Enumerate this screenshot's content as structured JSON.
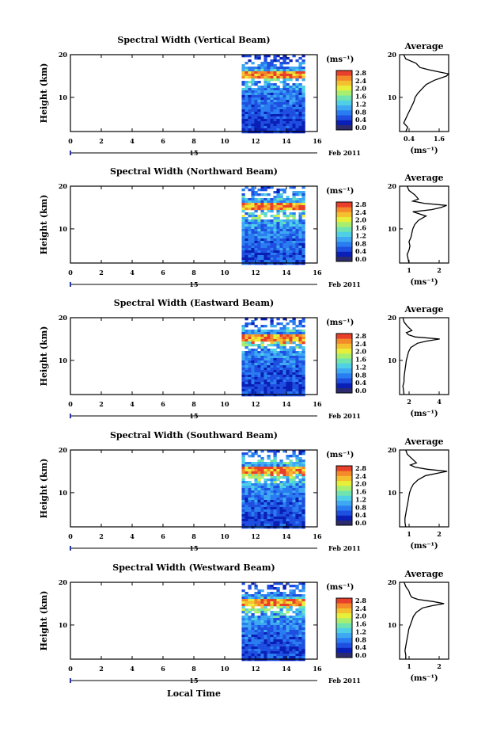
{
  "figure": {
    "xlabel": "Local Time",
    "date_label": "Feb 2011",
    "date_tick": "15",
    "ylabel": "Height (km)",
    "avg_title": "Average",
    "unit": "(ms⁻¹)"
  },
  "colorbar": {
    "ticks": [
      "0.0",
      "0.4",
      "0.8",
      "1.2",
      "1.6",
      "2.0",
      "2.4",
      "2.8"
    ],
    "colors": [
      "#2b2b6e",
      "#0a1fb5",
      "#1f4fe0",
      "#2a7df0",
      "#3fa8f2",
      "#4fd0e6",
      "#6fe3b0",
      "#a8ef70",
      "#e8ef3a",
      "#f5c030",
      "#f58a2a",
      "#e8402a"
    ]
  },
  "chart_data": [
    {
      "type": "heatmap",
      "title": "Spectral Width (Vertical Beam)",
      "xlabel": "Local Time",
      "ylabel": "Height (km)",
      "xlim": [
        0,
        16
      ],
      "ylim": [
        2,
        20
      ],
      "x_ticks": [
        0,
        2,
        4,
        6,
        8,
        10,
        12,
        14,
        16
      ],
      "y_ticks": [
        10,
        20
      ],
      "data_extent_x": [
        11.1,
        15.0
      ],
      "colorbar_range": [
        0.0,
        2.8
      ],
      "average": {
        "xlim": [
          0.4,
          1.6
        ],
        "x_ticks": [
          "0.4",
          "1.6"
        ],
        "height": [
          2,
          3,
          4,
          5,
          6,
          7,
          8,
          9,
          10,
          11,
          12,
          13,
          14,
          14.5,
          15,
          15.5,
          16,
          16.5,
          17,
          18,
          19,
          20
        ],
        "value": [
          0.55,
          0.6,
          0.5,
          0.55,
          0.6,
          0.65,
          0.7,
          0.75,
          0.78,
          0.85,
          0.95,
          1.05,
          1.25,
          1.4,
          1.55,
          1.6,
          1.35,
          1.1,
          0.9,
          0.8,
          0.55,
          0.5
        ]
      }
    },
    {
      "type": "heatmap",
      "title": "Spectral Width (Northward Beam)",
      "xlabel": "Local Time",
      "ylabel": "Height (km)",
      "xlim": [
        0,
        16
      ],
      "ylim": [
        2,
        20
      ],
      "x_ticks": [
        0,
        2,
        4,
        6,
        8,
        10,
        12,
        14,
        16
      ],
      "y_ticks": [
        10,
        20
      ],
      "data_extent_x": [
        11.1,
        15.0
      ],
      "colorbar_range": [
        0.0,
        2.8
      ],
      "average": {
        "xlim": [
          0.2,
          2.8
        ],
        "x_ticks": [
          "1",
          "2"
        ],
        "height": [
          2,
          3,
          4,
          5,
          6,
          7,
          8,
          9,
          10,
          11,
          12,
          13,
          14,
          14.5,
          15,
          15.5,
          16,
          16.5,
          17,
          18,
          19,
          20
        ],
        "value": [
          0.7,
          0.65,
          0.6,
          0.7,
          0.75,
          0.7,
          0.8,
          0.85,
          0.9,
          1.0,
          1.2,
          1.6,
          0.9,
          1.9,
          2.4,
          2.7,
          1.5,
          0.9,
          1.2,
          1.0,
          0.7,
          0.6
        ]
      }
    },
    {
      "type": "heatmap",
      "title": "Spectral Width (Eastward Beam)",
      "xlabel": "Local Time",
      "ylabel": "Height (km)",
      "xlim": [
        0,
        16
      ],
      "ylim": [
        2,
        20
      ],
      "x_ticks": [
        0,
        2,
        4,
        6,
        8,
        10,
        12,
        14,
        16
      ],
      "y_ticks": [
        10,
        20
      ],
      "data_extent_x": [
        11.1,
        15.0
      ],
      "colorbar_range": [
        0.0,
        2.8
      ],
      "average": {
        "xlim": [
          0.2,
          4.6
        ],
        "x_ticks": [
          "2",
          "4"
        ],
        "height": [
          2,
          3,
          4,
          5,
          6,
          7,
          8,
          9,
          10,
          11,
          12,
          13,
          14,
          14.5,
          15,
          15.5,
          16,
          16.5,
          17,
          18,
          19,
          20
        ],
        "value": [
          0.6,
          0.55,
          0.5,
          0.6,
          0.6,
          0.65,
          0.7,
          0.75,
          0.8,
          0.9,
          1.0,
          1.2,
          1.8,
          2.6,
          3.8,
          1.6,
          1.0,
          0.8,
          1.3,
          0.9,
          0.6,
          0.5
        ]
      }
    },
    {
      "type": "heatmap",
      "title": "Spectral Width (Southward Beam)",
      "xlabel": "Local Time",
      "ylabel": "Height (km)",
      "xlim": [
        0,
        16
      ],
      "ylim": [
        2,
        20
      ],
      "x_ticks": [
        0,
        2,
        4,
        6,
        8,
        10,
        12,
        14,
        16
      ],
      "y_ticks": [
        10,
        20
      ],
      "data_extent_x": [
        11.1,
        15.0
      ],
      "colorbar_range": [
        0.0,
        2.8
      ],
      "average": {
        "xlim": [
          0.2,
          3.4
        ],
        "x_ticks": [
          "1",
          "2"
        ],
        "height": [
          2,
          3,
          4,
          5,
          6,
          7,
          8,
          9,
          10,
          11,
          12,
          13,
          14,
          14.5,
          15,
          15.5,
          16,
          16.5,
          17,
          18,
          19,
          20
        ],
        "value": [
          0.6,
          0.55,
          0.55,
          0.6,
          0.65,
          0.7,
          0.75,
          0.8,
          0.85,
          0.95,
          1.1,
          1.4,
          1.9,
          2.6,
          3.3,
          2.0,
          1.2,
          0.9,
          1.3,
          1.0,
          0.7,
          0.6
        ]
      }
    },
    {
      "type": "heatmap",
      "title": "Spectral Width (Westward Beam)",
      "xlabel": "Local Time",
      "ylabel": "Height (km)",
      "xlim": [
        0,
        16
      ],
      "ylim": [
        2,
        20
      ],
      "x_ticks": [
        0,
        2,
        4,
        6,
        8,
        10,
        12,
        14,
        16
      ],
      "y_ticks": [
        10,
        20
      ],
      "data_extent_x": [
        11.1,
        15.0
      ],
      "colorbar_range": [
        0.0,
        2.8
      ],
      "average": {
        "xlim": [
          0.2,
          3.4
        ],
        "x_ticks": [
          "1",
          "2"
        ],
        "height": [
          2,
          3,
          4,
          5,
          6,
          7,
          8,
          9,
          10,
          11,
          12,
          13,
          14,
          14.5,
          15,
          15.5,
          16,
          16.5,
          17,
          18,
          19,
          20
        ],
        "value": [
          0.6,
          0.6,
          0.55,
          0.6,
          0.65,
          0.7,
          0.75,
          0.8,
          0.9,
          1.0,
          1.1,
          1.3,
          1.7,
          2.3,
          3.1,
          2.4,
          1.4,
          1.0,
          0.9,
          0.8,
          0.6,
          0.5
        ]
      }
    }
  ]
}
